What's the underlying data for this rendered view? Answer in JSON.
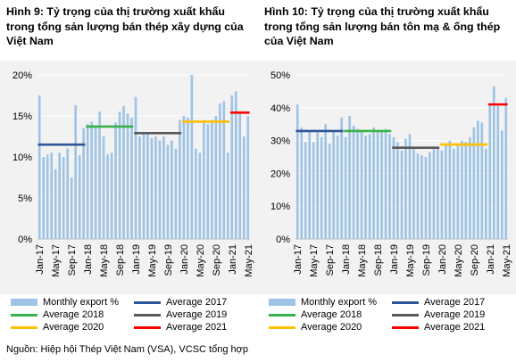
{
  "source": "Nguồn: Hiệp hội Thép Việt Nam (VSA), VCSC tổng hợp",
  "colors": {
    "monthly": "#9dc3e6",
    "avg2017": "#2e5597",
    "avg2018": "#3ab24a",
    "avg2019": "#595959",
    "avg2020": "#ffc000",
    "avg2021": "#ff0000"
  },
  "legend": {
    "monthly": "Monthly export %",
    "avg2017": "Average 2017",
    "avg2018": "Average 2018",
    "avg2019": "Average 2019",
    "avg2020": "Average 2020",
    "avg2021": "Average 2021"
  },
  "chart_data": [
    {
      "type": "bar",
      "title": "Hình 9: Tỷ trọng của thị trường xuất khẩu trong tổng sản lượng bán thép xây dựng của Việt Nam",
      "ylim": [
        0,
        20
      ],
      "yticks": [
        "0%",
        "5%",
        "10%",
        "15%",
        "20%"
      ],
      "ytick_values": [
        0,
        5,
        10,
        15,
        20
      ],
      "xtick_labels": [
        "Jan-17",
        "May-17",
        "Sep-17",
        "Jan-18",
        "May-18",
        "Sep-18",
        "Jan-19",
        "May-19",
        "Sep-19",
        "Jan-20",
        "May-20",
        "Sep-20",
        "Jan-21",
        "May-21"
      ],
      "months": 53,
      "series": [
        {
          "name": "Monthly export %",
          "values": [
            17.5,
            10.0,
            10.3,
            10.5,
            8.5,
            10.5,
            10.0,
            11.0,
            7.5,
            16.3,
            10.2,
            13.5,
            14.0,
            14.3,
            13.8,
            15.5,
            12.5,
            10.3,
            10.5,
            14.2,
            15.5,
            16.2,
            15.3,
            14.8,
            17.3,
            12.5,
            12.8,
            12.8,
            12.3,
            12.5,
            12.0,
            12.5,
            11.5,
            12.0,
            11.0,
            14.5,
            15.0,
            14.8,
            20.0,
            11.0,
            10.5,
            14.5,
            14.0,
            14.5,
            15.0,
            16.5,
            16.8,
            10.5,
            17.5,
            18.0,
            15.5,
            12.5,
            15.0
          ]
        }
      ],
      "averages": [
        {
          "name": "Average 2017",
          "value": 11.5,
          "from": 0,
          "to": 11
        },
        {
          "name": "Average 2018",
          "value": 13.7,
          "from": 12,
          "to": 23
        },
        {
          "name": "Average 2019",
          "value": 12.9,
          "from": 24,
          "to": 35
        },
        {
          "name": "Average 2020",
          "value": 14.3,
          "from": 36,
          "to": 47
        },
        {
          "name": "Average 2021",
          "value": 15.4,
          "from": 48,
          "to": 52
        }
      ]
    },
    {
      "type": "bar",
      "title": "Hình 10: Tỷ trọng của thị trường xuất khẩu trong tổng sản lượng bán tôn mạ & ống thép của Việt Nam",
      "ylim": [
        0,
        50
      ],
      "yticks": [
        "0%",
        "10%",
        "20%",
        "30%",
        "40%",
        "50%"
      ],
      "ytick_values": [
        0,
        10,
        20,
        30,
        40,
        50
      ],
      "xtick_labels": [
        "Jan-17",
        "May-17",
        "Sep-17",
        "Jan-18",
        "May-18",
        "Sep-18",
        "Jan-19",
        "May-19",
        "Sep-19",
        "Jan-20",
        "May-20",
        "Sep-20",
        "Jan-21",
        "May-21"
      ],
      "months": 53,
      "series": [
        {
          "name": "Monthly export %",
          "values": [
            41.0,
            34.0,
            29.5,
            33.0,
            29.5,
            32.5,
            31.0,
            35.0,
            29.0,
            33.0,
            31.5,
            37.0,
            31.0,
            37.5,
            34.5,
            33.5,
            33.0,
            31.5,
            32.0,
            34.0,
            32.5,
            33.0,
            33.5,
            32.0,
            31.0,
            29.5,
            27.0,
            30.5,
            32.0,
            27.5,
            26.0,
            25.5,
            25.0,
            26.5,
            27.5,
            28.0,
            27.0,
            29.0,
            30.0,
            27.5,
            28.5,
            30.0,
            29.5,
            31.0,
            34.0,
            36.0,
            35.5,
            27.5,
            41.0,
            46.5,
            40.5,
            33.0,
            43.0
          ]
        }
      ],
      "averages": [
        {
          "name": "Average 2017",
          "value": 32.9,
          "from": 0,
          "to": 11
        },
        {
          "name": "Average 2018",
          "value": 32.9,
          "from": 12,
          "to": 23
        },
        {
          "name": "Average 2019",
          "value": 27.8,
          "from": 24,
          "to": 35
        },
        {
          "name": "Average 2020",
          "value": 28.8,
          "from": 36,
          "to": 47
        },
        {
          "name": "Average 2021",
          "value": 41.0,
          "from": 48,
          "to": 52
        }
      ]
    }
  ]
}
